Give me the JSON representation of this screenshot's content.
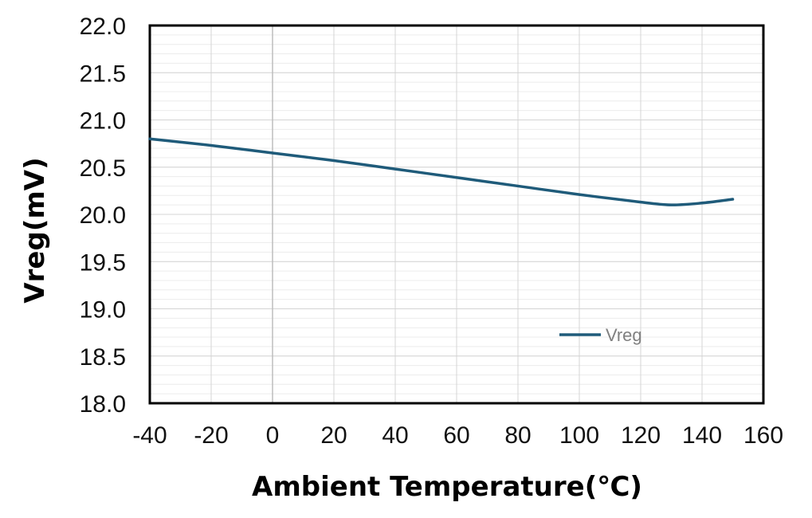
{
  "chart_data": {
    "type": "line",
    "xlabel": "Ambient Temperature(℃)",
    "ylabel": "Vreg(mV)",
    "xlim": [
      -40,
      160
    ],
    "ylim": [
      18.0,
      22.0
    ],
    "x_ticks": [
      "-40",
      "-20",
      "0",
      "20",
      "40",
      "60",
      "80",
      "100",
      "120",
      "140",
      "160"
    ],
    "y_ticks": [
      "22.0",
      "21.5",
      "21.0",
      "20.5",
      "20.0",
      "19.5",
      "19.0",
      "18.5",
      "18.0"
    ],
    "grid": true,
    "legend_position": "lower-right",
    "series": [
      {
        "name": "Vreg",
        "color": "#1f5b7a",
        "x": [
          -40,
          -20,
          0,
          20,
          40,
          60,
          80,
          100,
          120,
          130,
          140,
          150
        ],
        "y": [
          20.8,
          20.73,
          20.65,
          20.57,
          20.48,
          20.39,
          20.3,
          20.21,
          20.13,
          20.1,
          20.12,
          20.16
        ]
      }
    ]
  }
}
